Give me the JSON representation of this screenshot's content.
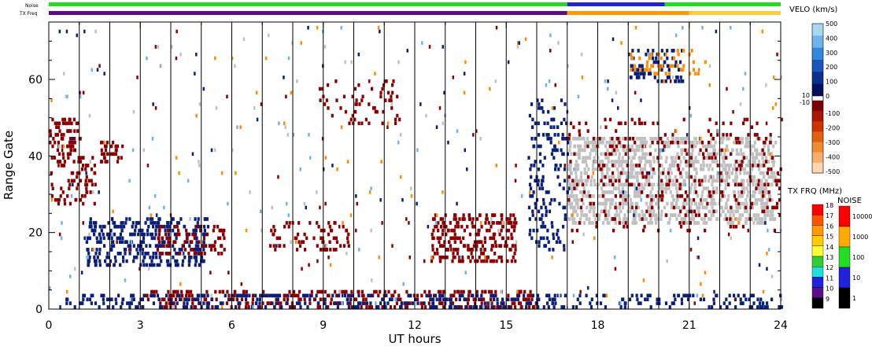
{
  "chart_data": {
    "type": "heatmap",
    "title": "",
    "xlabel": "UT hours",
    "ylabel": "Range Gate",
    "xlim": [
      0,
      24
    ],
    "ylim": [
      0,
      75
    ],
    "xticks": [
      0,
      3,
      6,
      9,
      12,
      15,
      18,
      21,
      24
    ],
    "yticks": [
      0,
      20,
      40,
      60
    ],
    "scan_lines_ut": [
      1.0,
      2.0,
      3.0,
      4.0,
      5.0,
      6.0,
      7.0,
      8.0,
      9.0,
      10.0,
      11.0,
      12.0,
      13.0,
      14.0,
      15.0,
      16.0,
      17.0,
      18.0,
      19.0,
      20.0,
      21.0,
      22.0,
      23.0
    ],
    "top_strips": {
      "noise_label": "Noise",
      "txfreq_label": "TX Freq",
      "noise_segments": [
        {
          "start": 0,
          "end": 17,
          "color": "#22dd22"
        },
        {
          "start": 17,
          "end": 20.2,
          "color": "#2222dd"
        },
        {
          "start": 20.2,
          "end": 24,
          "color": "#22dd22"
        }
      ],
      "txfreq_segments": [
        {
          "start": 0,
          "end": 17,
          "color": "#5a0f8a"
        },
        {
          "start": 17,
          "end": 21,
          "color": "#ff9900"
        },
        {
          "start": 21,
          "end": 24,
          "color": "#ffcc33"
        }
      ]
    },
    "regions": [
      {
        "name": "red-early",
        "x0": 0.0,
        "x1": 1.0,
        "y0": 40,
        "y1": 50,
        "color": "#8b0000",
        "density": 0.55
      },
      {
        "name": "red-2h",
        "x0": 1.6,
        "x1": 2.4,
        "y0": 38,
        "y1": 44,
        "color": "#8b0000",
        "density": 0.5
      },
      {
        "name": "mixed-early",
        "x0": 0.0,
        "x1": 1.5,
        "y0": 27,
        "y1": 40,
        "color": "#8b0000",
        "density": 0.3
      },
      {
        "name": "blue-band",
        "x0": 1.2,
        "x1": 5.2,
        "y0": 11,
        "y1": 24,
        "color": "#0a1f7a",
        "density": 0.55
      },
      {
        "name": "red-4h",
        "x0": 3.5,
        "x1": 5.8,
        "y0": 14,
        "y1": 22,
        "color": "#8b0000",
        "density": 0.4
      },
      {
        "name": "mixed-8h",
        "x0": 7.0,
        "x1": 9.8,
        "y0": 15,
        "y1": 23,
        "color": "#8b0000",
        "density": 0.25
      },
      {
        "name": "red-13h",
        "x0": 12.5,
        "x1": 15.3,
        "y0": 12,
        "y1": 25,
        "color": "#8b0000",
        "density": 0.55
      },
      {
        "name": "red-near",
        "x0": 3.0,
        "x1": 16.0,
        "y0": 0,
        "y1": 5,
        "color": "#8b0000",
        "density": 0.45
      },
      {
        "name": "blue-near",
        "x0": 0.5,
        "x1": 24.0,
        "y0": 0,
        "y1": 4,
        "color": "#0a1f7a",
        "density": 0.35
      },
      {
        "name": "gray-late",
        "x0": 17.0,
        "x1": 23.8,
        "y0": 22,
        "y1": 45,
        "color": "#c0c0c0",
        "density": 0.7
      },
      {
        "name": "blue-16h",
        "x0": 15.7,
        "x1": 17.0,
        "y0": 15,
        "y1": 55,
        "color": "#0a1f7a",
        "density": 0.25
      },
      {
        "name": "blue-20h",
        "x0": 19.0,
        "x1": 20.8,
        "y0": 59,
        "y1": 68,
        "color": "#0a1f7a",
        "density": 0.4
      },
      {
        "name": "orange-20h",
        "x0": 19.0,
        "x1": 21.5,
        "y0": 61,
        "y1": 68,
        "color": "#ff8c00",
        "density": 0.2
      },
      {
        "name": "red-mid-far",
        "x0": 8.8,
        "x1": 11.5,
        "y0": 48,
        "y1": 60,
        "color": "#8b0000",
        "density": 0.15
      },
      {
        "name": "red-late",
        "x0": 17.0,
        "x1": 24.0,
        "y0": 20,
        "y1": 50,
        "color": "#8b0000",
        "density": 0.12
      }
    ],
    "velocity_colorbar": {
      "title": "VELO (km/s)",
      "top_labels": [
        "500",
        "400",
        "300",
        "200",
        "100",
        "0"
      ],
      "top_colors": [
        "#a6d8f0",
        "#6fb4e8",
        "#3388dd",
        "#1a55bb",
        "#0a2f90",
        "#05105c"
      ],
      "mid_labels": [
        "10",
        "-10"
      ],
      "bottom_labels": [
        "-100",
        "-200",
        "-300",
        "-400",
        "-500"
      ],
      "bottom_colors": [
        "#7a0000",
        "#a81800",
        "#cc3300",
        "#e06010",
        "#f08c30",
        "#f5b070",
        "#fad7b0"
      ]
    },
    "txfreq_colorbar": {
      "title": "TX FRQ (MHz)",
      "labels": [
        "18",
        "17",
        "16",
        "15",
        "14",
        "13",
        "12",
        "11",
        "10",
        "9"
      ],
      "colors": [
        "#ff0000",
        "#ff5500",
        "#ff9900",
        "#ffcc00",
        "#ffff33",
        "#33cc33",
        "#22dddd",
        "#2222dd",
        "#5a0f8a",
        "#000000"
      ]
    },
    "noise_colorbar": {
      "title": "NOISE",
      "labels": [
        "10000",
        "1000",
        "100",
        "10",
        "1"
      ],
      "colors": [
        "#ff0000",
        "#ffaa00",
        "#22dd22",
        "#2222dd",
        "#000000"
      ]
    }
  }
}
